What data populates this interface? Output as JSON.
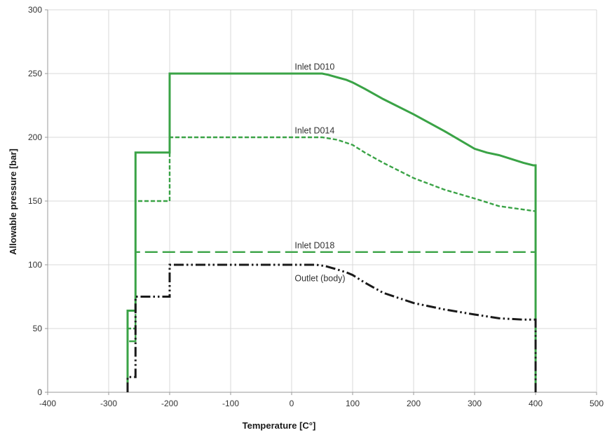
{
  "chart_data": {
    "type": "line",
    "title": "",
    "xlabel": "Temperature  [C°]",
    "ylabel": "Allowable pressure [bar]",
    "xlim": [
      -400,
      500
    ],
    "ylim": [
      0,
      300
    ],
    "x_ticks": [
      "-400",
      "-300",
      "-200",
      "-100",
      "0",
      "100",
      "200",
      "300",
      "400",
      "500"
    ],
    "y_ticks": [
      "0",
      "50",
      "100",
      "150",
      "200",
      "250",
      "300"
    ],
    "grid": "vertical and horizontal",
    "legend": "none (series labeled inline)",
    "series": [
      {
        "name": "Inlet D010",
        "color": "#3aa346",
        "style": "solid",
        "points": [
          [
            -269,
            0
          ],
          [
            -269,
            64
          ],
          [
            -256,
            64
          ],
          [
            -256,
            188
          ],
          [
            -200,
            188
          ],
          [
            -200,
            250
          ],
          [
            50,
            250
          ],
          [
            60,
            249
          ],
          [
            75,
            247
          ],
          [
            90,
            245
          ],
          [
            100,
            243
          ],
          [
            120,
            238
          ],
          [
            150,
            230
          ],
          [
            200,
            218
          ],
          [
            250,
            205
          ],
          [
            300,
            191
          ],
          [
            320,
            188
          ],
          [
            340,
            186
          ],
          [
            380,
            180
          ],
          [
            396,
            178
          ],
          [
            400,
            178
          ],
          [
            400,
            0
          ]
        ]
      },
      {
        "name": "Inlet D014",
        "color": "#3aa346",
        "style": "dashed",
        "points": [
          [
            -269,
            0
          ],
          [
            -269,
            50
          ],
          [
            -256,
            50
          ],
          [
            -256,
            150
          ],
          [
            -200,
            150
          ],
          [
            -200,
            200
          ],
          [
            50,
            200
          ],
          [
            75,
            198
          ],
          [
            100,
            194
          ],
          [
            120,
            188
          ],
          [
            150,
            180
          ],
          [
            200,
            168
          ],
          [
            250,
            159
          ],
          [
            300,
            152
          ],
          [
            320,
            149
          ],
          [
            340,
            146
          ],
          [
            370,
            144
          ],
          [
            400,
            142
          ],
          [
            400,
            0
          ]
        ]
      },
      {
        "name": "Inlet D018",
        "color": "#3aa346",
        "style": "long-dashed",
        "points": [
          [
            -269,
            0
          ],
          [
            -269,
            40
          ],
          [
            -256,
            40
          ],
          [
            -256,
            110
          ],
          [
            400,
            110
          ],
          [
            400,
            0
          ]
        ]
      },
      {
        "name": "Outlet (body)",
        "color": "#1a1a1a",
        "style": "dash-dot-dot",
        "points": [
          [
            -269,
            0
          ],
          [
            -269,
            12
          ],
          [
            -256,
            12
          ],
          [
            -256,
            75
          ],
          [
            -200,
            75
          ],
          [
            -200,
            100
          ],
          [
            40,
            100
          ],
          [
            55,
            99
          ],
          [
            70,
            97
          ],
          [
            90,
            94
          ],
          [
            100,
            92
          ],
          [
            120,
            86
          ],
          [
            150,
            78
          ],
          [
            200,
            70
          ],
          [
            250,
            65
          ],
          [
            300,
            61
          ],
          [
            340,
            58
          ],
          [
            380,
            57
          ],
          [
            400,
            57
          ],
          [
            400,
            0
          ]
        ]
      }
    ]
  }
}
